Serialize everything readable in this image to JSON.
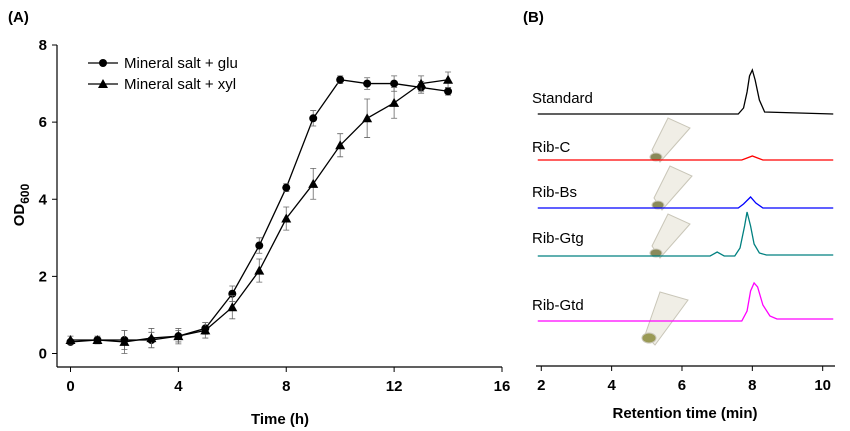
{
  "chart_data": [
    {
      "type": "line",
      "panel_label": "(A)",
      "xlabel": "Time (h)",
      "ylabel": "OD",
      "ylabel_sub": "600",
      "x": [
        0,
        1,
        2,
        3,
        4,
        5,
        6,
        7,
        8,
        9,
        10,
        11,
        12,
        13,
        14
      ],
      "xlim": [
        -0.5,
        16
      ],
      "xticks": [
        0,
        4,
        8,
        12,
        16
      ],
      "ylim": [
        -0.35,
        8
      ],
      "yticks": [
        0,
        2,
        4,
        6,
        8
      ],
      "series": [
        {
          "name": "Mineral salt + glu",
          "color": "#000000",
          "marker": "circle",
          "values": [
            0.3,
            0.35,
            0.35,
            0.35,
            0.45,
            0.65,
            1.55,
            2.8,
            4.3,
            6.1,
            7.1,
            7.0,
            7.0,
            6.9,
            6.8
          ],
          "errors": [
            0.05,
            0.05,
            0.25,
            0.2,
            0.15,
            0.15,
            0.2,
            0.2,
            0.1,
            0.2,
            0.1,
            0.15,
            0.2,
            0.15,
            0.1
          ]
        },
        {
          "name": "Mineral salt + xyl",
          "color": "#000000",
          "marker": "triangle",
          "values": [
            0.35,
            0.35,
            0.3,
            0.4,
            0.45,
            0.6,
            1.2,
            2.15,
            3.5,
            4.4,
            5.4,
            6.1,
            6.5,
            7.0,
            7.1
          ],
          "errors": [
            0.1,
            0.1,
            0.3,
            0.25,
            0.2,
            0.2,
            0.3,
            0.3,
            0.3,
            0.4,
            0.3,
            0.5,
            0.4,
            0.2,
            0.2
          ]
        }
      ]
    },
    {
      "type": "trace",
      "panel_label": "(B)",
      "xlabel": "Retention time (min)",
      "xlim": [
        1.85,
        10.35
      ],
      "xticks": [
        2,
        4,
        6,
        8,
        10
      ],
      "series": [
        {
          "name": "Standard",
          "color": "#000000",
          "x": [
            1.9,
            7.6,
            7.75,
            7.85,
            7.92,
            8.0,
            8.08,
            8.2,
            8.35,
            10.3
          ],
          "values": [
            0,
            0,
            6,
            22,
            38,
            44,
            34,
            14,
            2,
            0
          ]
        },
        {
          "name": "Rib-C",
          "color": "#ff0000",
          "x": [
            1.9,
            7.7,
            7.85,
            8.0,
            8.15,
            8.3,
            10.3
          ],
          "values": [
            0,
            0,
            2,
            4,
            2,
            0,
            0
          ]
        },
        {
          "name": "Rib-Bs",
          "color": "#0000ff",
          "x": [
            1.9,
            7.6,
            7.75,
            7.95,
            8.1,
            8.3,
            10.3
          ],
          "values": [
            0,
            0,
            4,
            11,
            5,
            0,
            0
          ]
        },
        {
          "name": "Rib-Gtg",
          "color": "#008080",
          "x": [
            1.9,
            6.8,
            7.0,
            7.2,
            7.5,
            7.65,
            7.78,
            7.85,
            7.95,
            8.05,
            8.2,
            8.4,
            10.3
          ],
          "values": [
            0,
            0,
            4,
            0,
            0,
            8,
            30,
            44,
            30,
            12,
            3,
            1,
            1
          ]
        },
        {
          "name": "Rib-Gtd",
          "color": "#ff00ff",
          "x": [
            1.9,
            7.7,
            7.85,
            7.95,
            8.05,
            8.15,
            8.3,
            8.5,
            8.7,
            10.3
          ],
          "values": [
            0,
            0,
            10,
            30,
            38,
            34,
            16,
            5,
            2,
            2
          ]
        }
      ]
    }
  ]
}
